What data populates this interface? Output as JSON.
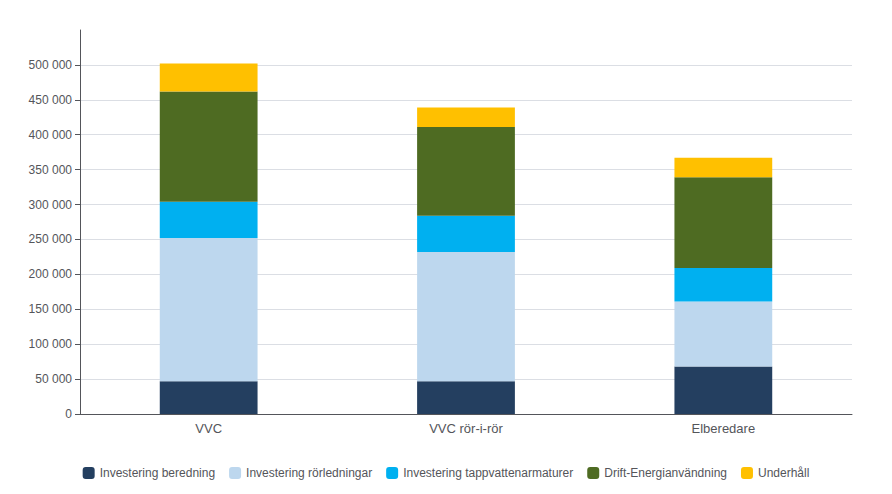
{
  "chart_data": {
    "type": "bar",
    "stacked": true,
    "categories": [
      "VVC",
      "VVC rör-i-rör",
      "Elberedare"
    ],
    "series": [
      {
        "name": "Investering beredning",
        "color": "#243F60",
        "values": [
          47000,
          47000,
          68000
        ]
      },
      {
        "name": "Investering rörledningar",
        "color": "#BDD7EE",
        "values": [
          205000,
          185000,
          93000
        ]
      },
      {
        "name": "Investering tappvattenarmaturer",
        "color": "#00B0F0",
        "values": [
          52000,
          52000,
          48000
        ]
      },
      {
        "name": "Drift-Energianvändning",
        "color": "#4E6B22",
        "values": [
          158000,
          127000,
          130000
        ]
      },
      {
        "name": "Underhåll",
        "color": "#FFC000",
        "values": [
          40000,
          28000,
          28000
        ]
      }
    ],
    "ylim": [
      0,
      550000
    ],
    "yticks": [
      0,
      {
        "value": 50000,
        "label": "50 000"
      },
      {
        "value": 100000,
        "label": "100 000"
      },
      {
        "value": 150000,
        "label": "150 000"
      },
      {
        "value": 200000,
        "label": "200 000"
      },
      {
        "value": 250000,
        "label": "250 000"
      },
      {
        "value": 300000,
        "label": "300 000"
      },
      {
        "value": 350000,
        "label": "350 000"
      },
      {
        "value": 400000,
        "label": "400 000"
      },
      {
        "value": 450000,
        "label": "450 000"
      },
      {
        "value": 500000,
        "label": "500 000"
      }
    ],
    "grid": true,
    "legend": "bottom"
  }
}
